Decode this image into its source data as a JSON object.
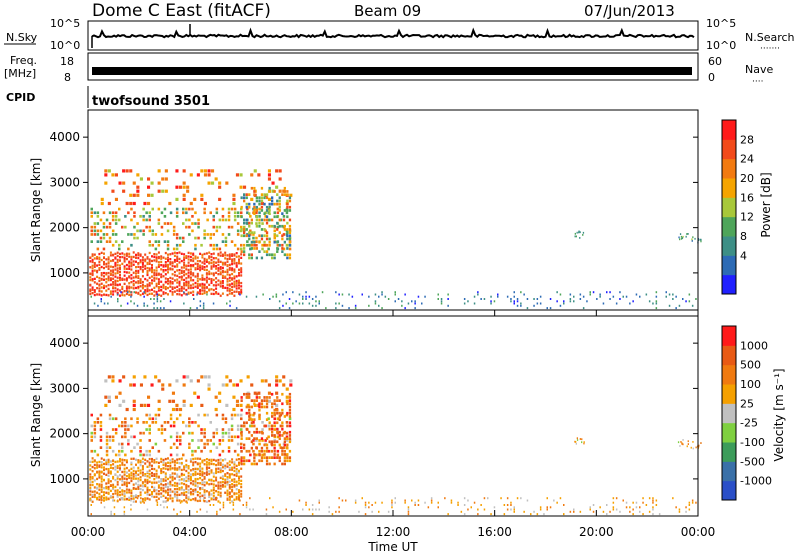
{
  "header": {
    "title": "Dome C East (fitACF)",
    "beam": "Beam 09",
    "date": "07/Jun/2013"
  },
  "strip_nsky": {
    "label": "N.Sky",
    "ticks": [
      "10^5",
      "10^0"
    ],
    "right_label": "N.Search",
    "right_ticks": [
      "10^5",
      "10^0"
    ],
    "right_dots": "·······"
  },
  "strip_freq": {
    "label1": "Freq.",
    "label2": "[MHz]",
    "ticks": [
      "18",
      "8"
    ],
    "right_label": "Nave",
    "right_ticks": [
      "60",
      "0"
    ],
    "right_dots": "····"
  },
  "strip_cpid": {
    "label": "CPID",
    "value": "twofsound 3501"
  },
  "chart_data": [
    {
      "type": "heatmap",
      "parameter": "Power",
      "ylabel": "Slant Range [km]",
      "yticks": [
        1000,
        2000,
        3000,
        4000
      ],
      "ylim": [
        180,
        4600
      ],
      "xlim": [
        0,
        24
      ],
      "colorbar": {
        "label": "Power [dB]",
        "ticks": [
          "28",
          "24",
          "20",
          "16",
          "12",
          "8",
          "4"
        ],
        "colors": [
          "#2020ff",
          "#2d6bb5",
          "#3d8f86",
          "#4ea55a",
          "#a8c83a",
          "#f5a400",
          "#f27a10",
          "#f24a1a",
          "#ff1a1a"
        ]
      }
    },
    {
      "type": "heatmap",
      "parameter": "Velocity",
      "ylabel": "Slant Range [km]",
      "yticks": [
        1000,
        2000,
        3000,
        4000
      ],
      "ylim": [
        180,
        4600
      ],
      "xlim": [
        0,
        24
      ],
      "xticks": [
        "00:00",
        "04:00",
        "08:00",
        "12:00",
        "16:00",
        "20:00",
        "00:00"
      ],
      "xlabel": "Time UT",
      "colorbar": {
        "label": "Velocity [m s⁻¹]",
        "ticks": [
          "1000",
          "500",
          "100",
          "25",
          "-25",
          "-100",
          "-500",
          "-1000"
        ],
        "colors": [
          "#2a4fc8",
          "#3a70a8",
          "#3c9c5a",
          "#7fd040",
          "#c0c0c0",
          "#f5a000",
          "#f07a10",
          "#e85a15",
          "#ff1a1a"
        ]
      }
    }
  ]
}
